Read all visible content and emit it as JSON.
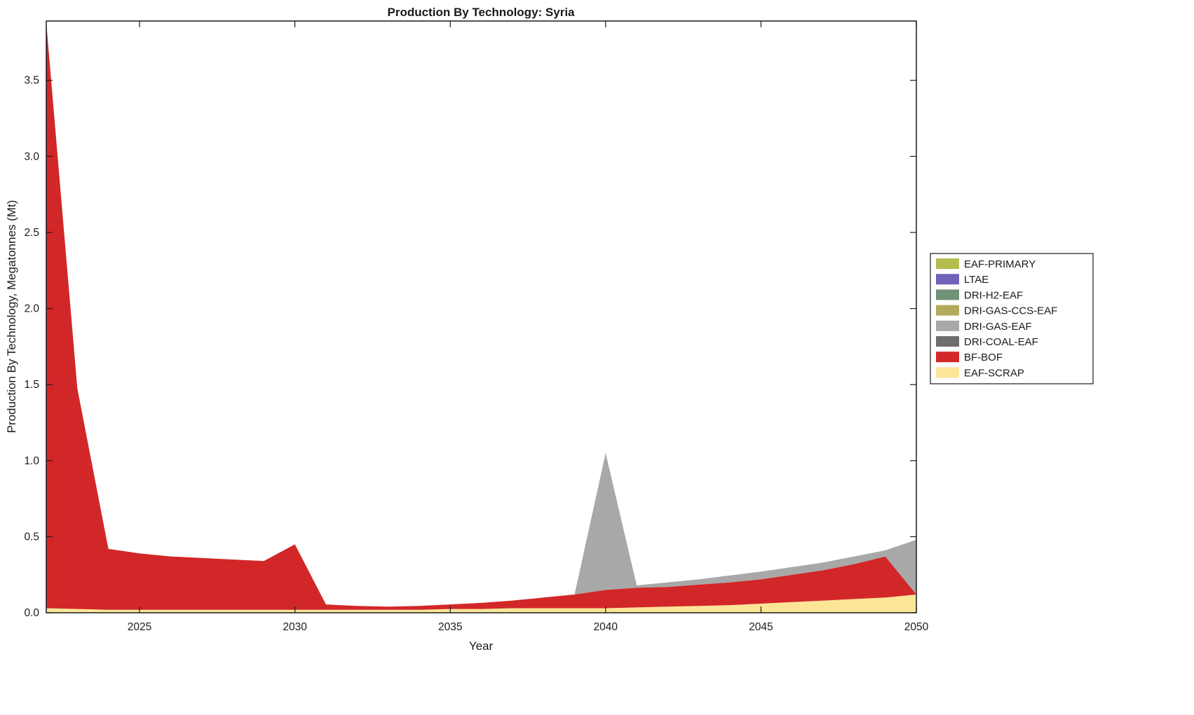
{
  "chart_data": {
    "type": "area",
    "stacked": true,
    "title": "Production By Technology: Syria",
    "xlabel": "Year",
    "ylabel": "Production By Technology, Megatonnes (Mt)",
    "xlim": [
      2022,
      2050
    ],
    "ylim": [
      0,
      3.89
    ],
    "grid": false,
    "legend_position": "right-outside",
    "xticks": [
      {
        "v": 2025,
        "label": "2025"
      },
      {
        "v": 2030,
        "label": "2030"
      },
      {
        "v": 2035,
        "label": "2035"
      },
      {
        "v": 2040,
        "label": "2040"
      },
      {
        "v": 2045,
        "label": "2045"
      },
      {
        "v": 2050,
        "label": "2050"
      }
    ],
    "yticks": [
      {
        "v": 0.0,
        "label": "0.0"
      },
      {
        "v": 0.5,
        "label": "0.5"
      },
      {
        "v": 1.0,
        "label": "1.0"
      },
      {
        "v": 1.5,
        "label": "1.5"
      },
      {
        "v": 2.0,
        "label": "2.0"
      },
      {
        "v": 2.5,
        "label": "2.5"
      },
      {
        "v": 3.0,
        "label": "3.0"
      },
      {
        "v": 3.5,
        "label": "3.5"
      }
    ],
    "x": [
      2022,
      2023,
      2024,
      2025,
      2026,
      2027,
      2028,
      2029,
      2030,
      2031,
      2032,
      2033,
      2034,
      2035,
      2036,
      2037,
      2038,
      2039,
      2040,
      2041,
      2042,
      2043,
      2044,
      2045,
      2046,
      2047,
      2048,
      2049,
      2050
    ],
    "series": [
      {
        "name": "EAF-PRIMARY",
        "color": "#b4bd4e",
        "values": [
          0,
          0,
          0,
          0,
          0,
          0,
          0,
          0,
          0,
          0,
          0,
          0,
          0,
          0,
          0,
          0,
          0,
          0,
          0,
          0,
          0,
          0,
          0,
          0,
          0,
          0,
          0,
          0,
          0
        ]
      },
      {
        "name": "LTAE",
        "color": "#6f63bb",
        "values": [
          0,
          0,
          0,
          0,
          0,
          0,
          0,
          0,
          0,
          0,
          0,
          0,
          0,
          0,
          0,
          0,
          0,
          0,
          0,
          0,
          0,
          0,
          0,
          0,
          0,
          0,
          0,
          0,
          0
        ]
      },
      {
        "name": "DRI-H2-EAF",
        "color": "#6f9178",
        "values": [
          0,
          0,
          0,
          0,
          0,
          0,
          0,
          0,
          0,
          0,
          0,
          0,
          0,
          0,
          0,
          0,
          0,
          0,
          0,
          0,
          0,
          0,
          0,
          0,
          0,
          0,
          0,
          0,
          0
        ]
      },
      {
        "name": "DRI-GAS-CCS-EAF",
        "color": "#b2ab5d",
        "values": [
          0,
          0,
          0,
          0,
          0,
          0,
          0,
          0,
          0,
          0,
          0,
          0,
          0,
          0,
          0,
          0,
          0,
          0,
          0,
          0,
          0,
          0,
          0,
          0,
          0,
          0,
          0,
          0,
          0
        ]
      },
      {
        "name": "DRI-GAS-EAF",
        "color": "#a8a8a8",
        "values": [
          0,
          0,
          0,
          0,
          0,
          0,
          0,
          0,
          0,
          0,
          0,
          0,
          0,
          0,
          0,
          0,
          0,
          0,
          0.9,
          0.015,
          0.03,
          0.035,
          0.045,
          0.05,
          0.05,
          0.05,
          0.05,
          0.04,
          0.36
        ]
      },
      {
        "name": "DRI-COAL-EAF",
        "color": "#6e6e6e",
        "values": [
          0,
          0,
          0,
          0,
          0,
          0,
          0,
          0,
          0,
          0,
          0,
          0,
          0,
          0,
          0,
          0,
          0,
          0,
          0,
          0,
          0,
          0,
          0,
          0,
          0,
          0,
          0,
          0,
          0
        ]
      },
      {
        "name": "BF-BOF",
        "color": "#d22728",
        "values": [
          3.85,
          1.45,
          0.4,
          0.37,
          0.35,
          0.34,
          0.33,
          0.32,
          0.43,
          0.035,
          0.025,
          0.02,
          0.025,
          0.03,
          0.04,
          0.05,
          0.07,
          0.09,
          0.12,
          0.13,
          0.13,
          0.14,
          0.15,
          0.16,
          0.18,
          0.2,
          0.23,
          0.27,
          0.0
        ]
      },
      {
        "name": "EAF-SCRAP",
        "color": "#fbe698",
        "values": [
          0.03,
          0.025,
          0.02,
          0.02,
          0.02,
          0.02,
          0.02,
          0.02,
          0.02,
          0.02,
          0.02,
          0.02,
          0.02,
          0.025,
          0.025,
          0.03,
          0.03,
          0.03,
          0.03,
          0.035,
          0.04,
          0.045,
          0.05,
          0.06,
          0.07,
          0.08,
          0.09,
          0.1,
          0.12
        ]
      }
    ]
  }
}
